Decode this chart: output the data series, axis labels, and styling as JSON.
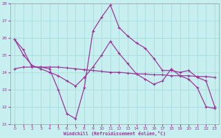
{
  "xlabel": "Windchill (Refroidissement éolien,°C)",
  "xlim": [
    -0.5,
    23.5
  ],
  "ylim": [
    21,
    28
  ],
  "yticks": [
    21,
    22,
    23,
    24,
    25,
    26,
    27,
    28
  ],
  "xticks": [
    0,
    1,
    2,
    3,
    4,
    5,
    6,
    7,
    8,
    9,
    10,
    11,
    12,
    13,
    14,
    15,
    16,
    17,
    18,
    19,
    20,
    21,
    22,
    23
  ],
  "bg_color": "#c8efef",
  "grid_color": "#a0d8d8",
  "line_color": "#993399",
  "line1_x": [
    0,
    1,
    2,
    3,
    4,
    5,
    6,
    7,
    8,
    9,
    10,
    11,
    12,
    13,
    14,
    15,
    16,
    17,
    18,
    19,
    20,
    21,
    22,
    23
  ],
  "line1_y": [
    25.9,
    25.3,
    24.3,
    24.3,
    24.2,
    23.0,
    21.6,
    21.3,
    23.1,
    26.4,
    27.2,
    27.9,
    26.6,
    26.1,
    25.7,
    25.4,
    24.8,
    24.1,
    24.1,
    24.0,
    24.1,
    23.7,
    23.5,
    22.0
  ],
  "line2_x": [
    0,
    1,
    2,
    3,
    4,
    5,
    6,
    7,
    8,
    9,
    10,
    11,
    12,
    13,
    14,
    15,
    16,
    17,
    18,
    19,
    20,
    21,
    22,
    23
  ],
  "line2_y": [
    24.2,
    24.3,
    24.3,
    24.3,
    24.3,
    24.3,
    24.25,
    24.2,
    24.15,
    24.1,
    24.05,
    24.0,
    24.0,
    23.95,
    23.9,
    23.9,
    23.85,
    23.85,
    23.8,
    23.8,
    23.8,
    23.75,
    23.75,
    23.7
  ],
  "line3_x": [
    0,
    1,
    2,
    3,
    4,
    5,
    6,
    7,
    8,
    9,
    10,
    11,
    12,
    13,
    14,
    15,
    16,
    17,
    18,
    19,
    20,
    21,
    22,
    23
  ],
  "line3_y": [
    25.9,
    25.0,
    24.4,
    24.2,
    24.0,
    23.8,
    23.5,
    23.2,
    23.7,
    24.3,
    25.0,
    25.8,
    25.1,
    24.5,
    23.9,
    23.6,
    23.3,
    23.5,
    24.2,
    23.8,
    23.6,
    23.1,
    22.0,
    21.9
  ]
}
